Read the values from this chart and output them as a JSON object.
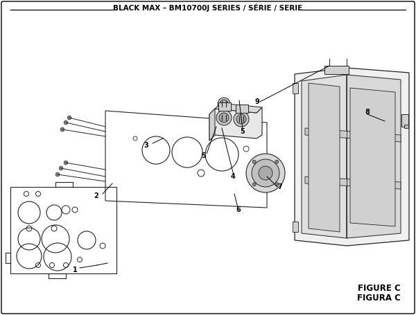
{
  "title": "BLACK MAX – BM10700J SERIES / SÉRIE / SERIE",
  "figure_label": "FIGURE C",
  "figura_label": "FIGURA C",
  "bg_color": "#ffffff",
  "lc": "#222222",
  "title_fontsize": 7.5,
  "label_fontsize": 7,
  "figure_label_fontsize": 8.5
}
